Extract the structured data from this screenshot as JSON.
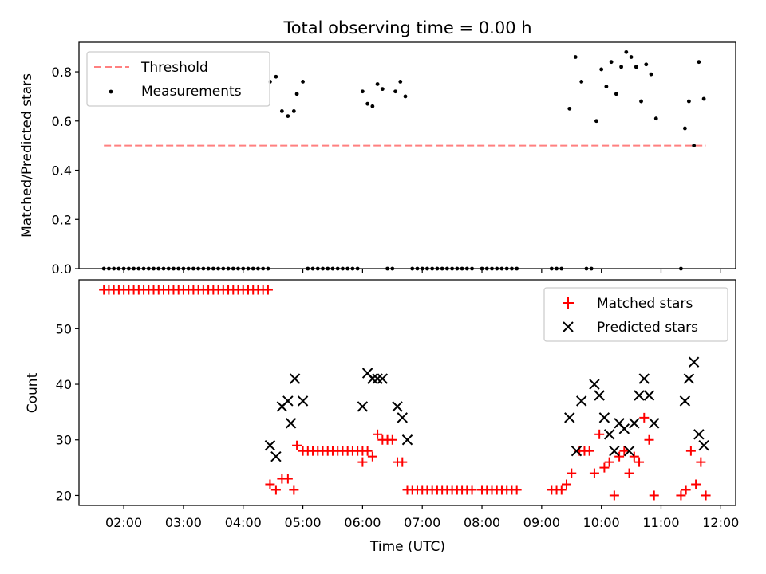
{
  "title": "Total observing time = 0.00 h",
  "chart_data": [
    {
      "type": "scatter",
      "ylabel": "Matched/Predicted stars",
      "xlabel": "",
      "x_unit": "time (UTC)",
      "xlim": [
        "01:15",
        "12:15"
      ],
      "ylim": [
        0,
        0.92
      ],
      "yticks": [
        "0.0",
        "0.2",
        "0.4",
        "0.6",
        "0.8"
      ],
      "grid": false,
      "legend_position": "top-left",
      "series": [
        {
          "name": "Threshold",
          "style": "dashed-line",
          "color": "#ff8080",
          "points": [
            [
              "01:40",
              0.5
            ],
            [
              "11:45",
              0.5
            ]
          ]
        },
        {
          "name": "Measurements",
          "style": "dot",
          "color": "#000000",
          "points": [
            [
              "01:40",
              0
            ],
            [
              "01:45",
              0
            ],
            [
              "01:50",
              0
            ],
            [
              "01:55",
              0
            ],
            [
              "02:00",
              0
            ],
            [
              "02:05",
              0
            ],
            [
              "02:10",
              0
            ],
            [
              "02:15",
              0
            ],
            [
              "02:20",
              0
            ],
            [
              "02:25",
              0
            ],
            [
              "02:30",
              0
            ],
            [
              "02:35",
              0
            ],
            [
              "02:40",
              0
            ],
            [
              "02:45",
              0
            ],
            [
              "02:50",
              0
            ],
            [
              "02:55",
              0
            ],
            [
              "03:00",
              0
            ],
            [
              "03:05",
              0
            ],
            [
              "03:10",
              0
            ],
            [
              "03:15",
              0
            ],
            [
              "03:20",
              0
            ],
            [
              "03:25",
              0
            ],
            [
              "03:30",
              0
            ],
            [
              "03:35",
              0
            ],
            [
              "03:40",
              0
            ],
            [
              "03:45",
              0
            ],
            [
              "03:50",
              0
            ],
            [
              "03:55",
              0
            ],
            [
              "04:00",
              0
            ],
            [
              "04:05",
              0
            ],
            [
              "04:10",
              0
            ],
            [
              "04:15",
              0
            ],
            [
              "04:20",
              0
            ],
            [
              "04:25",
              0
            ],
            [
              "04:27",
              0.76
            ],
            [
              "04:33",
              0.78
            ],
            [
              "04:39",
              0.64
            ],
            [
              "04:45",
              0.62
            ],
            [
              "04:51",
              0.64
            ],
            [
              "04:54",
              0.71
            ],
            [
              "05:00",
              0.76
            ],
            [
              "05:05",
              0
            ],
            [
              "05:10",
              0
            ],
            [
              "05:15",
              0
            ],
            [
              "05:20",
              0
            ],
            [
              "05:25",
              0
            ],
            [
              "05:30",
              0
            ],
            [
              "05:35",
              0
            ],
            [
              "05:40",
              0
            ],
            [
              "05:45",
              0
            ],
            [
              "05:50",
              0
            ],
            [
              "05:55",
              0
            ],
            [
              "06:00",
              0.72
            ],
            [
              "06:05",
              0.67
            ],
            [
              "06:10",
              0.66
            ],
            [
              "06:15",
              0.75
            ],
            [
              "06:20",
              0.73
            ],
            [
              "06:25",
              0
            ],
            [
              "06:30",
              0
            ],
            [
              "06:33",
              0.72
            ],
            [
              "06:38",
              0.76
            ],
            [
              "06:43",
              0.7
            ],
            [
              "06:50",
              0
            ],
            [
              "06:55",
              0
            ],
            [
              "07:00",
              0
            ],
            [
              "07:05",
              0
            ],
            [
              "07:10",
              0
            ],
            [
              "07:15",
              0
            ],
            [
              "07:20",
              0
            ],
            [
              "07:25",
              0
            ],
            [
              "07:30",
              0
            ],
            [
              "07:35",
              0
            ],
            [
              "07:40",
              0
            ],
            [
              "07:45",
              0
            ],
            [
              "07:50",
              0
            ],
            [
              "08:00",
              0
            ],
            [
              "08:05",
              0
            ],
            [
              "08:10",
              0
            ],
            [
              "08:15",
              0
            ],
            [
              "08:20",
              0
            ],
            [
              "08:25",
              0
            ],
            [
              "08:30",
              0
            ],
            [
              "08:35",
              0
            ],
            [
              "09:10",
              0
            ],
            [
              "09:15",
              0
            ],
            [
              "09:20",
              0
            ],
            [
              "09:28",
              0.65
            ],
            [
              "09:34",
              0.86
            ],
            [
              "09:40",
              0.76
            ],
            [
              "09:45",
              0
            ],
            [
              "09:50",
              0
            ],
            [
              "09:55",
              0.6
            ],
            [
              "10:00",
              0.81
            ],
            [
              "10:05",
              0.74
            ],
            [
              "10:10",
              0.84
            ],
            [
              "10:15",
              0.71
            ],
            [
              "10:20",
              0.82
            ],
            [
              "10:25",
              0.88
            ],
            [
              "10:30",
              0.86
            ],
            [
              "10:35",
              0.82
            ],
            [
              "10:40",
              0.68
            ],
            [
              "10:45",
              0.83
            ],
            [
              "10:50",
              0.79
            ],
            [
              "10:55",
              0.61
            ],
            [
              "11:20",
              0
            ],
            [
              "11:24",
              0.57
            ],
            [
              "11:28",
              0.68
            ],
            [
              "11:33",
              0.5
            ],
            [
              "11:38",
              0.84
            ],
            [
              "11:43",
              0.69
            ]
          ]
        }
      ]
    },
    {
      "type": "scatter",
      "ylabel": "Count",
      "xlabel": "Time (UTC)",
      "x_unit": "time (UTC)",
      "xlim": [
        "01:15",
        "12:15"
      ],
      "ylim": [
        18.2,
        58.8
      ],
      "xticks": [
        "02:00",
        "03:00",
        "04:00",
        "05:00",
        "06:00",
        "07:00",
        "08:00",
        "09:00",
        "10:00",
        "11:00",
        "12:00"
      ],
      "yticks": [
        "20",
        "30",
        "40",
        "50"
      ],
      "grid": false,
      "legend_position": "top-right",
      "series": [
        {
          "name": "Matched stars",
          "marker": "plus",
          "color": "#ff0000",
          "points": [
            [
              "01:40",
              57
            ],
            [
              "01:45",
              57
            ],
            [
              "01:50",
              57
            ],
            [
              "01:55",
              57
            ],
            [
              "02:00",
              57
            ],
            [
              "02:05",
              57
            ],
            [
              "02:10",
              57
            ],
            [
              "02:15",
              57
            ],
            [
              "02:20",
              57
            ],
            [
              "02:25",
              57
            ],
            [
              "02:30",
              57
            ],
            [
              "02:35",
              57
            ],
            [
              "02:40",
              57
            ],
            [
              "02:45",
              57
            ],
            [
              "02:50",
              57
            ],
            [
              "02:55",
              57
            ],
            [
              "03:00",
              57
            ],
            [
              "03:05",
              57
            ],
            [
              "03:10",
              57
            ],
            [
              "03:15",
              57
            ],
            [
              "03:20",
              57
            ],
            [
              "03:25",
              57
            ],
            [
              "03:30",
              57
            ],
            [
              "03:35",
              57
            ],
            [
              "03:40",
              57
            ],
            [
              "03:45",
              57
            ],
            [
              "03:50",
              57
            ],
            [
              "03:55",
              57
            ],
            [
              "04:00",
              57
            ],
            [
              "04:05",
              57
            ],
            [
              "04:10",
              57
            ],
            [
              "04:15",
              57
            ],
            [
              "04:20",
              57
            ],
            [
              "04:25",
              57
            ],
            [
              "04:27",
              22
            ],
            [
              "04:33",
              21
            ],
            [
              "04:39",
              23
            ],
            [
              "04:45",
              23
            ],
            [
              "04:51",
              21
            ],
            [
              "04:54",
              29
            ],
            [
              "05:00",
              28
            ],
            [
              "05:05",
              28
            ],
            [
              "05:10",
              28
            ],
            [
              "05:15",
              28
            ],
            [
              "05:20",
              28
            ],
            [
              "05:25",
              28
            ],
            [
              "05:30",
              28
            ],
            [
              "05:35",
              28
            ],
            [
              "05:40",
              28
            ],
            [
              "05:45",
              28
            ],
            [
              "05:50",
              28
            ],
            [
              "05:55",
              28
            ],
            [
              "06:00",
              28
            ],
            [
              "06:05",
              28
            ],
            [
              "06:00",
              26
            ],
            [
              "06:10",
              27
            ],
            [
              "06:15",
              31
            ],
            [
              "06:20",
              30
            ],
            [
              "06:25",
              30
            ],
            [
              "06:30",
              30
            ],
            [
              "06:35",
              26
            ],
            [
              "06:40",
              26
            ],
            [
              "06:45",
              21
            ],
            [
              "06:50",
              21
            ],
            [
              "06:55",
              21
            ],
            [
              "07:00",
              21
            ],
            [
              "07:05",
              21
            ],
            [
              "07:10",
              21
            ],
            [
              "07:15",
              21
            ],
            [
              "07:20",
              21
            ],
            [
              "07:25",
              21
            ],
            [
              "07:30",
              21
            ],
            [
              "07:35",
              21
            ],
            [
              "07:40",
              21
            ],
            [
              "07:45",
              21
            ],
            [
              "07:50",
              21
            ],
            [
              "08:00",
              21
            ],
            [
              "08:05",
              21
            ],
            [
              "08:10",
              21
            ],
            [
              "08:15",
              21
            ],
            [
              "08:20",
              21
            ],
            [
              "08:25",
              21
            ],
            [
              "08:30",
              21
            ],
            [
              "08:35",
              21
            ],
            [
              "09:10",
              21
            ],
            [
              "09:15",
              21
            ],
            [
              "09:20",
              21
            ],
            [
              "09:25",
              22
            ],
            [
              "09:30",
              24
            ],
            [
              "09:38",
              28
            ],
            [
              "09:43",
              28
            ],
            [
              "09:48",
              28
            ],
            [
              "09:53",
              24
            ],
            [
              "09:58",
              31
            ],
            [
              "10:03",
              25
            ],
            [
              "10:08",
              26
            ],
            [
              "10:13",
              20
            ],
            [
              "10:18",
              27
            ],
            [
              "10:23",
              28
            ],
            [
              "10:28",
              24
            ],
            [
              "10:33",
              27
            ],
            [
              "10:38",
              26
            ],
            [
              "10:43",
              34
            ],
            [
              "10:48",
              30
            ],
            [
              "10:53",
              20
            ],
            [
              "11:20",
              20
            ],
            [
              "11:25",
              21
            ],
            [
              "11:30",
              28
            ],
            [
              "11:35",
              22
            ],
            [
              "11:40",
              26
            ],
            [
              "11:45",
              20
            ]
          ]
        },
        {
          "name": "Predicted stars",
          "marker": "x",
          "color": "#000000",
          "points": [
            [
              "04:27",
              29
            ],
            [
              "04:33",
              27
            ],
            [
              "04:39",
              36
            ],
            [
              "04:45",
              37
            ],
            [
              "04:48",
              33
            ],
            [
              "04:52",
              41
            ],
            [
              "05:00",
              37
            ],
            [
              "06:00",
              36
            ],
            [
              "06:05",
              42
            ],
            [
              "06:10",
              41
            ],
            [
              "06:15",
              41
            ],
            [
              "06:20",
              41
            ],
            [
              "06:35",
              36
            ],
            [
              "06:40",
              34
            ],
            [
              "06:45",
              30
            ],
            [
              "09:28",
              34
            ],
            [
              "09:35",
              28
            ],
            [
              "09:40",
              37
            ],
            [
              "09:53",
              40
            ],
            [
              "09:58",
              38
            ],
            [
              "10:03",
              34
            ],
            [
              "10:08",
              31
            ],
            [
              "10:13",
              28
            ],
            [
              "10:18",
              33
            ],
            [
              "10:23",
              32
            ],
            [
              "10:28",
              28
            ],
            [
              "10:33",
              33
            ],
            [
              "10:38",
              38
            ],
            [
              "10:43",
              41
            ],
            [
              "10:48",
              38
            ],
            [
              "10:53",
              33
            ],
            [
              "11:24",
              37
            ],
            [
              "11:28",
              41
            ],
            [
              "11:33",
              44
            ],
            [
              "11:38",
              31
            ],
            [
              "11:43",
              29
            ]
          ]
        }
      ]
    }
  ]
}
